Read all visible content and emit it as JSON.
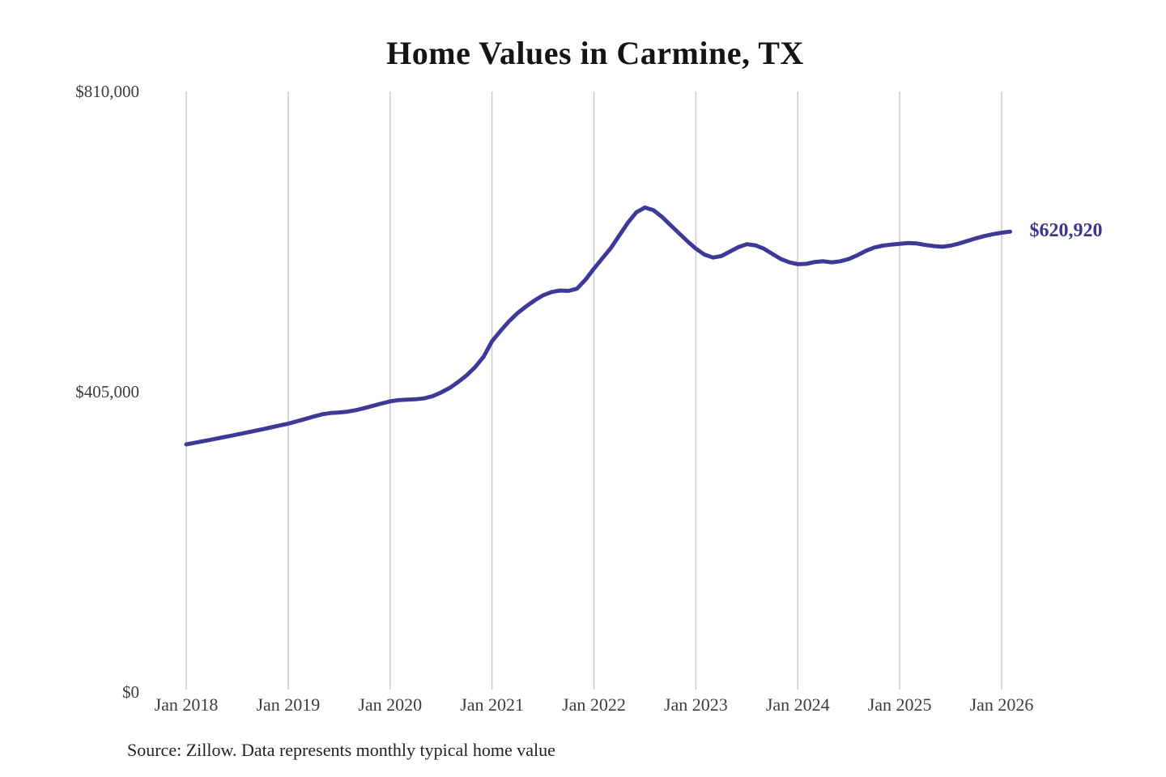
{
  "chart": {
    "title": "Home Values in Carmine, TX",
    "source": "Source: Zillow. Data represents monthly typical home value"
  },
  "chart_data": {
    "type": "line",
    "title": "Home Values in Carmine, TX",
    "subtitle": "",
    "xlabel": "",
    "ylabel": "",
    "series_name": "Monthly typical home value",
    "end_label": "$620,920",
    "end_value": 620920,
    "source": "Source: Zillow. Data represents monthly typical home value",
    "line_color": "#3e3897",
    "end_label_color": "#3a3494",
    "gridline_color": "#cbcbcb",
    "axis_label_color": "#3d3d3d",
    "ylim": [
      0,
      810000
    ],
    "grid": "vertical-only",
    "legend_position": "none",
    "y_ticks": [
      {
        "label": "$0",
        "value": 0
      },
      {
        "label": "$405,000",
        "value": 405000
      },
      {
        "label": "$810,000",
        "value": 810000
      }
    ],
    "x_ticks": [
      "Jan 2018",
      "Jan 2019",
      "Jan 2020",
      "Jan 2021",
      "Jan 2022",
      "Jan 2023",
      "Jan 2024",
      "Jan 2025",
      "Jan 2026"
    ],
    "x_tick_month_indices": [
      0,
      12,
      24,
      36,
      48,
      60,
      72,
      84,
      96
    ],
    "frequency": "monthly",
    "x": [
      "2018-01",
      "2018-02",
      "2018-03",
      "2018-04",
      "2018-05",
      "2018-06",
      "2018-07",
      "2018-08",
      "2018-09",
      "2018-10",
      "2018-11",
      "2018-12",
      "2019-01",
      "2019-02",
      "2019-03",
      "2019-04",
      "2019-05",
      "2019-06",
      "2019-07",
      "2019-08",
      "2019-09",
      "2019-10",
      "2019-11",
      "2019-12",
      "2020-01",
      "2020-02",
      "2020-03",
      "2020-04",
      "2020-05",
      "2020-06",
      "2020-07",
      "2020-08",
      "2020-09",
      "2020-10",
      "2020-11",
      "2020-12",
      "2021-01",
      "2021-02",
      "2021-03",
      "2021-04",
      "2021-05",
      "2021-06",
      "2021-07",
      "2021-08",
      "2021-09",
      "2021-10",
      "2021-11",
      "2021-12",
      "2022-01",
      "2022-02",
      "2022-03",
      "2022-04",
      "2022-05",
      "2022-06",
      "2022-07",
      "2022-08",
      "2022-09",
      "2022-10",
      "2022-11",
      "2022-12",
      "2023-01",
      "2023-02",
      "2023-03",
      "2023-04",
      "2023-05",
      "2023-06",
      "2023-07",
      "2023-08",
      "2023-09",
      "2023-10",
      "2023-11",
      "2023-12",
      "2024-01",
      "2024-02",
      "2024-03",
      "2024-04",
      "2024-05",
      "2024-06",
      "2024-07",
      "2024-08",
      "2024-09",
      "2024-10",
      "2024-11",
      "2024-12",
      "2025-01",
      "2025-02",
      "2025-03",
      "2025-04",
      "2025-05",
      "2025-06",
      "2025-07",
      "2025-08",
      "2025-09",
      "2025-10",
      "2025-11",
      "2025-12",
      "2026-01",
      "2026-02"
    ],
    "values": [
      334000,
      336100,
      338300,
      340500,
      342800,
      345100,
      347400,
      349700,
      352100,
      354500,
      357000,
      359500,
      362000,
      365000,
      368200,
      371500,
      374500,
      376300,
      377000,
      378200,
      380200,
      382900,
      386100,
      389200,
      392000,
      393600,
      394400,
      394800,
      396000,
      399000,
      404000,
      410000,
      418000,
      427000,
      438000,
      452000,
      473000,
      487000,
      500000,
      511000,
      520000,
      528000,
      535000,
      539500,
      541500,
      541000,
      544000,
      556000,
      571000,
      585000,
      599000,
      616000,
      633000,
      647000,
      653500,
      650000,
      641000,
      630000,
      619000,
      608000,
      598000,
      590000,
      586000,
      588000,
      594000,
      600000,
      604000,
      602500,
      598000,
      591000,
      584000,
      579500,
      577000,
      577500,
      580000,
      581000,
      579500,
      581000,
      584000,
      589000,
      595000,
      599500,
      602000,
      603500,
      604500,
      605500,
      605000,
      603000,
      601500,
      600500,
      602000,
      605000,
      608500,
      612000,
      615000,
      617500,
      619500,
      620920
    ]
  }
}
